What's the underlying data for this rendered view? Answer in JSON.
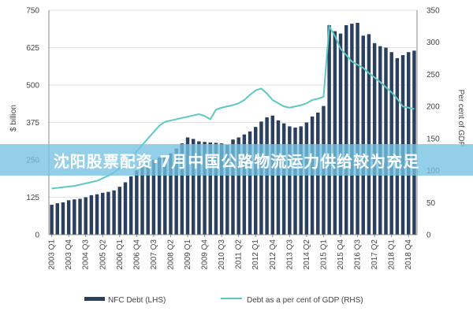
{
  "overlay_text": "沈阳股票配资·7月中国公路物流运力供给较为充足",
  "colors": {
    "bar": "#2b3f5e",
    "line": "#5fc8c0",
    "grid": "#e0e0e0",
    "banner": "#74c2e1"
  },
  "chart_data": {
    "type": "bar+line",
    "title": "",
    "ylabel_left": "$ billion",
    "ylabel_right": "Per cent of GDP",
    "ylim_left": [
      0,
      750
    ],
    "ylim_right": [
      0,
      350
    ],
    "yticks_left": [
      "0",
      "125",
      "250",
      "375",
      "500",
      "625",
      "750"
    ],
    "yticks_right": [
      "0",
      "50",
      "100",
      "150",
      "200",
      "250",
      "300",
      "350"
    ],
    "xtick_labels": [
      "2003 Q1",
      "2003 Q4",
      "2004 Q3",
      "2005 Q2",
      "2006 Q1",
      "2006 Q4",
      "2007 Q3",
      "2008 Q2",
      "2009 Q1",
      "2009 Q4",
      "2010 Q3",
      "2011 Q2",
      "2012 Q1",
      "2012 Q4",
      "2013 Q3",
      "2014 Q2",
      "2015 Q1",
      "2015 Q4",
      "2016 Q3",
      "2017 Q2",
      "2018 Q1",
      "2018 Q4"
    ],
    "legend": [
      "NFC Debt (LHS)",
      "Debt as a per cent of GDP (RHS)"
    ],
    "series": [
      {
        "name": "NFC Debt (LHS)",
        "type": "bar",
        "axis": "left",
        "values": [
          100,
          105,
          108,
          115,
          118,
          120,
          125,
          132,
          135,
          140,
          143,
          148,
          160,
          175,
          195,
          215,
          230,
          245,
          250,
          258,
          265,
          272,
          288,
          305,
          325,
          320,
          312,
          310,
          308,
          307,
          305,
          300,
          318,
          325,
          335,
          345,
          360,
          378,
          392,
          398,
          382,
          372,
          362,
          358,
          362,
          375,
          395,
          408,
          430,
          700,
          680,
          672,
          700,
          705,
          708,
          665,
          670,
          640,
          630,
          625,
          610,
          590,
          600,
          610,
          615
        ]
      },
      {
        "name": "Debt as a per cent of GDP (RHS)",
        "type": "line",
        "axis": "right",
        "values": [
          72,
          73,
          74,
          75,
          76,
          78,
          80,
          82,
          84,
          88,
          92,
          97,
          104,
          112,
          120,
          130,
          140,
          150,
          160,
          170,
          176,
          178,
          180,
          182,
          184,
          186,
          188,
          185,
          180,
          195,
          198,
          200,
          202,
          205,
          210,
          218,
          225,
          228,
          220,
          210,
          205,
          200,
          198,
          200,
          202,
          205,
          210,
          212,
          215,
          325,
          310,
          290,
          280,
          270,
          265,
          260,
          252,
          245,
          238,
          230,
          222,
          212,
          200,
          198,
          196
        ]
      }
    ]
  }
}
